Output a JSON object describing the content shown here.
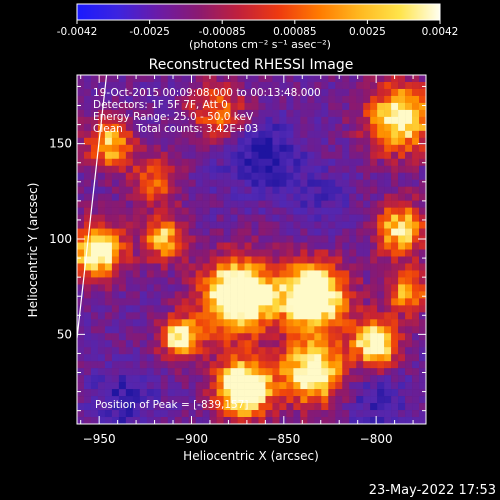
{
  "colorbar": {
    "ticks": [
      "-0.0042",
      "-0.0025",
      "-0.00085",
      "0.00085",
      "0.0025",
      "0.0042"
    ],
    "unit_label": "(photons cm⁻² s⁻¹ asec⁻²)",
    "colors": [
      "#1a1aff",
      "#3c24e0",
      "#6a1ba8",
      "#8a1a72",
      "#c0203c",
      "#ee3a10",
      "#ff7a00",
      "#ffb820",
      "#ffe44a",
      "#fffff0"
    ]
  },
  "chart_data": {
    "type": "heatmap",
    "title": "Reconstructed RHESSI Image",
    "xlabel": "Heliocentric X (arcsec)",
    "ylabel": "Heliocentric Y (arcsec)",
    "xlim": [
      -962,
      -773
    ],
    "ylim": [
      3,
      186
    ],
    "x_ticks": [
      -950,
      -900,
      -850,
      -800
    ],
    "y_ticks": [
      50,
      100,
      150
    ],
    "info_lines": [
      "19-Oct-2015 00:09:08.000 to 00:13:48.000",
      "Detectors: 1F 5F 7F, Att 0",
      "Energy Range: 25.0 - 50.0 keV",
      "Clean    Total counts: 3.42E+03"
    ],
    "peak_label": "Position of Peak = [-839,157]",
    "peak_position": [
      -839,
      157
    ],
    "sources": [
      {
        "x": -875,
        "y": 70,
        "peak": 1.0,
        "sigma": 14
      },
      {
        "x": -872,
        "y": 22,
        "peak": 0.95,
        "sigma": 11
      },
      {
        "x": -834,
        "y": 70,
        "peak": 0.95,
        "sigma": 13
      },
      {
        "x": -834,
        "y": 30,
        "peak": 0.8,
        "sigma": 12
      },
      {
        "x": -800,
        "y": 45,
        "peak": 0.8,
        "sigma": 9
      },
      {
        "x": -906,
        "y": 48,
        "peak": 0.7,
        "sigma": 8
      },
      {
        "x": -951,
        "y": 94,
        "peak": 0.85,
        "sigma": 10
      },
      {
        "x": -915,
        "y": 100,
        "peak": 0.6,
        "sigma": 8
      },
      {
        "x": -945,
        "y": 150,
        "peak": 0.6,
        "sigma": 9
      },
      {
        "x": -885,
        "y": 165,
        "peak": 0.5,
        "sigma": 12
      },
      {
        "x": -787,
        "y": 163,
        "peak": 0.75,
        "sigma": 13
      },
      {
        "x": -787,
        "y": 105,
        "peak": 0.65,
        "sigma": 10
      },
      {
        "x": -920,
        "y": 130,
        "peak": 0.4,
        "sigma": 10
      },
      {
        "x": -783,
        "y": 72,
        "peak": 0.55,
        "sigma": 8
      }
    ],
    "dips": [
      {
        "x": -857,
        "y": 142,
        "depth": 0.75,
        "sigma": 12
      },
      {
        "x": -875,
        "y": 150,
        "depth": 0.6,
        "sigma": 16
      },
      {
        "x": -937,
        "y": 15,
        "depth": 0.8,
        "sigma": 12
      },
      {
        "x": -800,
        "y": 15,
        "depth": 0.7,
        "sigma": 12
      },
      {
        "x": -830,
        "y": 120,
        "depth": 0.5,
        "sigma": 12
      }
    ],
    "limb_line": [
      [
        -962,
        48
      ],
      [
        -946,
        186
      ]
    ],
    "grid": false
  },
  "footer": {
    "timestamp": "23-May-2022 17:53"
  }
}
